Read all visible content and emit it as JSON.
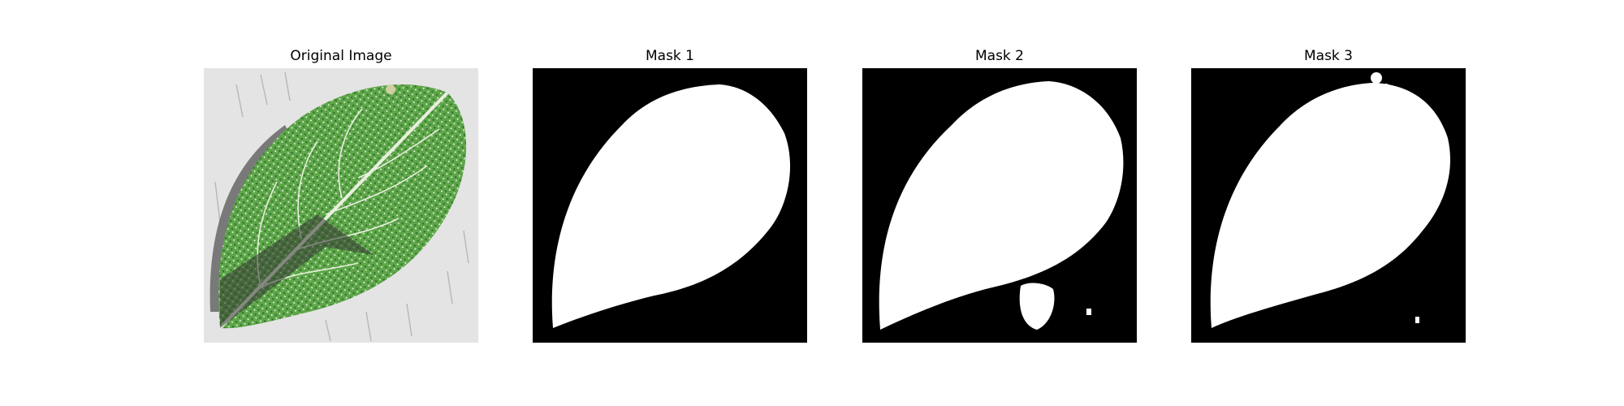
{
  "figure": {
    "panels": [
      {
        "title": "Original Image"
      },
      {
        "title": "Mask 1"
      },
      {
        "title": "Mask 2"
      },
      {
        "title": "Mask 3"
      }
    ]
  },
  "colors": {
    "background": "#ffffff",
    "mask_background": "#000000",
    "mask_foreground": "#ffffff",
    "photo_background": "#e4e4e4",
    "leaf_green": "#4f9a3a"
  }
}
